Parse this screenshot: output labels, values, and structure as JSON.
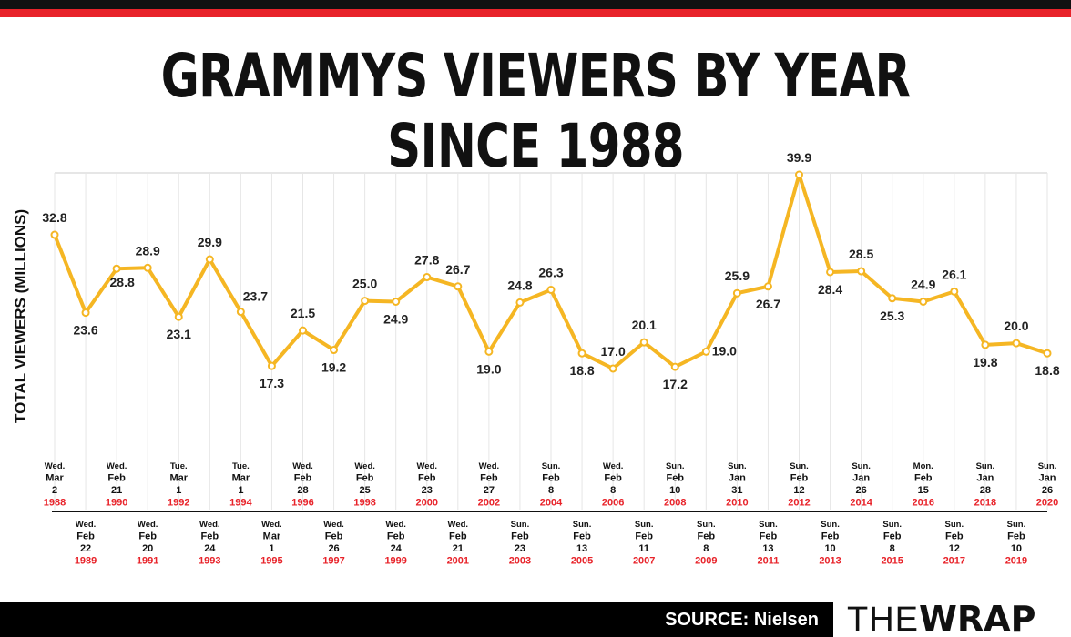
{
  "chart_data": {
    "type": "line",
    "title": "GRAMMYS VIEWERS BY YEAR SINCE 1988",
    "ylabel": "TOTAL VIEWERS (MILLIONS)",
    "xlabel": "",
    "line_color": "#f5b623",
    "year_color": "#e8232a",
    "points": [
      {
        "year": "1988",
        "day": "Wed.",
        "month": "Mar",
        "date": "2",
        "value": 32.8
      },
      {
        "year": "1989",
        "day": "Wed.",
        "month": "Feb",
        "date": "22",
        "value": 23.6
      },
      {
        "year": "1990",
        "day": "Wed.",
        "month": "Feb",
        "date": "21",
        "value": 28.8
      },
      {
        "year": "1991",
        "day": "Wed.",
        "month": "Feb",
        "date": "20",
        "value": 28.9
      },
      {
        "year": "1992",
        "day": "Tue.",
        "month": "Mar",
        "date": "1",
        "value": 23.1
      },
      {
        "year": "1993",
        "day": "Wed.",
        "month": "Feb",
        "date": "24",
        "value": 29.9
      },
      {
        "year": "1994",
        "day": "Tue.",
        "month": "Mar",
        "date": "1",
        "value": 23.7
      },
      {
        "year": "1995",
        "day": "Wed.",
        "month": "Mar",
        "date": "1",
        "value": 17.3
      },
      {
        "year": "1996",
        "day": "Wed.",
        "month": "Feb",
        "date": "28",
        "value": 21.5
      },
      {
        "year": "1997",
        "day": "Wed.",
        "month": "Feb",
        "date": "26",
        "value": 19.2
      },
      {
        "year": "1998",
        "day": "Wed.",
        "month": "Feb",
        "date": "25",
        "value": 25.0
      },
      {
        "year": "1999",
        "day": "Wed.",
        "month": "Feb",
        "date": "24",
        "value": 24.9
      },
      {
        "year": "2000",
        "day": "Wed.",
        "month": "Feb",
        "date": "23",
        "value": 27.8
      },
      {
        "year": "2001",
        "day": "Wed.",
        "month": "Feb",
        "date": "21",
        "value": 26.7
      },
      {
        "year": "2002",
        "day": "Wed.",
        "month": "Feb",
        "date": "27",
        "value": 19.0
      },
      {
        "year": "2003",
        "day": "Sun.",
        "month": "Feb",
        "date": "23",
        "value": 24.8
      },
      {
        "year": "2004",
        "day": "Sun.",
        "month": "Feb",
        "date": "8",
        "value": 26.3
      },
      {
        "year": "2005",
        "day": "Sun.",
        "month": "Feb",
        "date": "13",
        "value": 18.8
      },
      {
        "year": "2006",
        "day": "Wed.",
        "month": "Feb",
        "date": "8",
        "value": 17.0
      },
      {
        "year": "2007",
        "day": "Sun.",
        "month": "Feb",
        "date": "11",
        "value": 20.1
      },
      {
        "year": "2008",
        "day": "Sun.",
        "month": "Feb",
        "date": "10",
        "value": 17.2
      },
      {
        "year": "2009",
        "day": "Sun.",
        "month": "Feb",
        "date": "8",
        "value": 19.0
      },
      {
        "year": "2010",
        "day": "Sun.",
        "month": "Jan",
        "date": "31",
        "value": 25.9
      },
      {
        "year": "2011",
        "day": "Sun.",
        "month": "Feb",
        "date": "13",
        "value": 26.7
      },
      {
        "year": "2012",
        "day": "Sun.",
        "month": "Feb",
        "date": "12",
        "value": 39.9
      },
      {
        "year": "2013",
        "day": "Sun.",
        "month": "Feb",
        "date": "10",
        "value": 28.4
      },
      {
        "year": "2014",
        "day": "Sun.",
        "month": "Jan",
        "date": "26",
        "value": 28.5
      },
      {
        "year": "2015",
        "day": "Sun.",
        "month": "Feb",
        "date": "8",
        "value": 25.3
      },
      {
        "year": "2016",
        "day": "Mon.",
        "month": "Feb",
        "date": "15",
        "value": 24.9
      },
      {
        "year": "2017",
        "day": "Sun.",
        "month": "Feb",
        "date": "12",
        "value": 26.1
      },
      {
        "year": "2018",
        "day": "Sun.",
        "month": "Jan",
        "date": "28",
        "value": 19.8
      },
      {
        "year": "2019",
        "day": "Sun.",
        "month": "Feb",
        "date": "10",
        "value": 20.0
      },
      {
        "year": "2020",
        "day": "Sun.",
        "month": "Jan",
        "date": "26",
        "value": 18.8
      }
    ],
    "ylim": [
      17,
      40
    ],
    "grid": true
  },
  "footer": {
    "source": "SOURCE: Nielsen",
    "logo_thin": "THE",
    "logo_bold": "WRAP"
  }
}
